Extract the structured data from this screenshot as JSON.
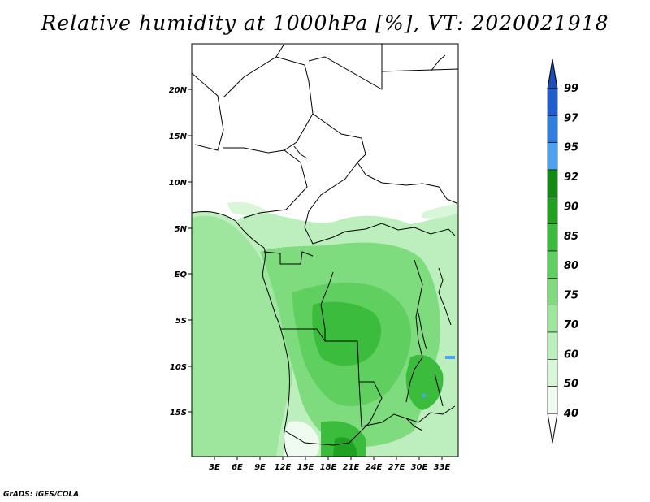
{
  "title": "Relative humidity at 1000hPa [%], VT: 2020021918",
  "credit": "GrADS: IGES/COLA",
  "map": {
    "lon_range": [
      0,
      35
    ],
    "lat_range": [
      -20,
      25
    ],
    "lon_ticks": [
      "3E",
      "6E",
      "9E",
      "12E",
      "15E",
      "18E",
      "21E",
      "24E",
      "27E",
      "30E",
      "33E"
    ],
    "lat_ticks": [
      "20N",
      "15N",
      "10N",
      "5N",
      "EQ",
      "5S",
      "10S",
      "15S"
    ]
  },
  "colorbar": {
    "labels": [
      "99",
      "97",
      "95",
      "92",
      "90",
      "85",
      "80",
      "75",
      "70",
      "60",
      "50",
      "40"
    ],
    "bins": [
      {
        "color": "#1f5fcf"
      },
      {
        "color": "#2f7ee0"
      },
      {
        "color": "#4fa2f0"
      },
      {
        "color": "#118a11"
      },
      {
        "color": "#1fa21f"
      },
      {
        "color": "#3cbc3c"
      },
      {
        "color": "#5fd05f"
      },
      {
        "color": "#7edc7e"
      },
      {
        "color": "#9ee69e"
      },
      {
        "color": "#bdeebd"
      },
      {
        "color": "#d9f6d9"
      },
      {
        "color": "#eefbee"
      }
    ],
    "top_arrow_color": "#1a4fb8",
    "bottom_arrow_color": "#ffffff"
  }
}
